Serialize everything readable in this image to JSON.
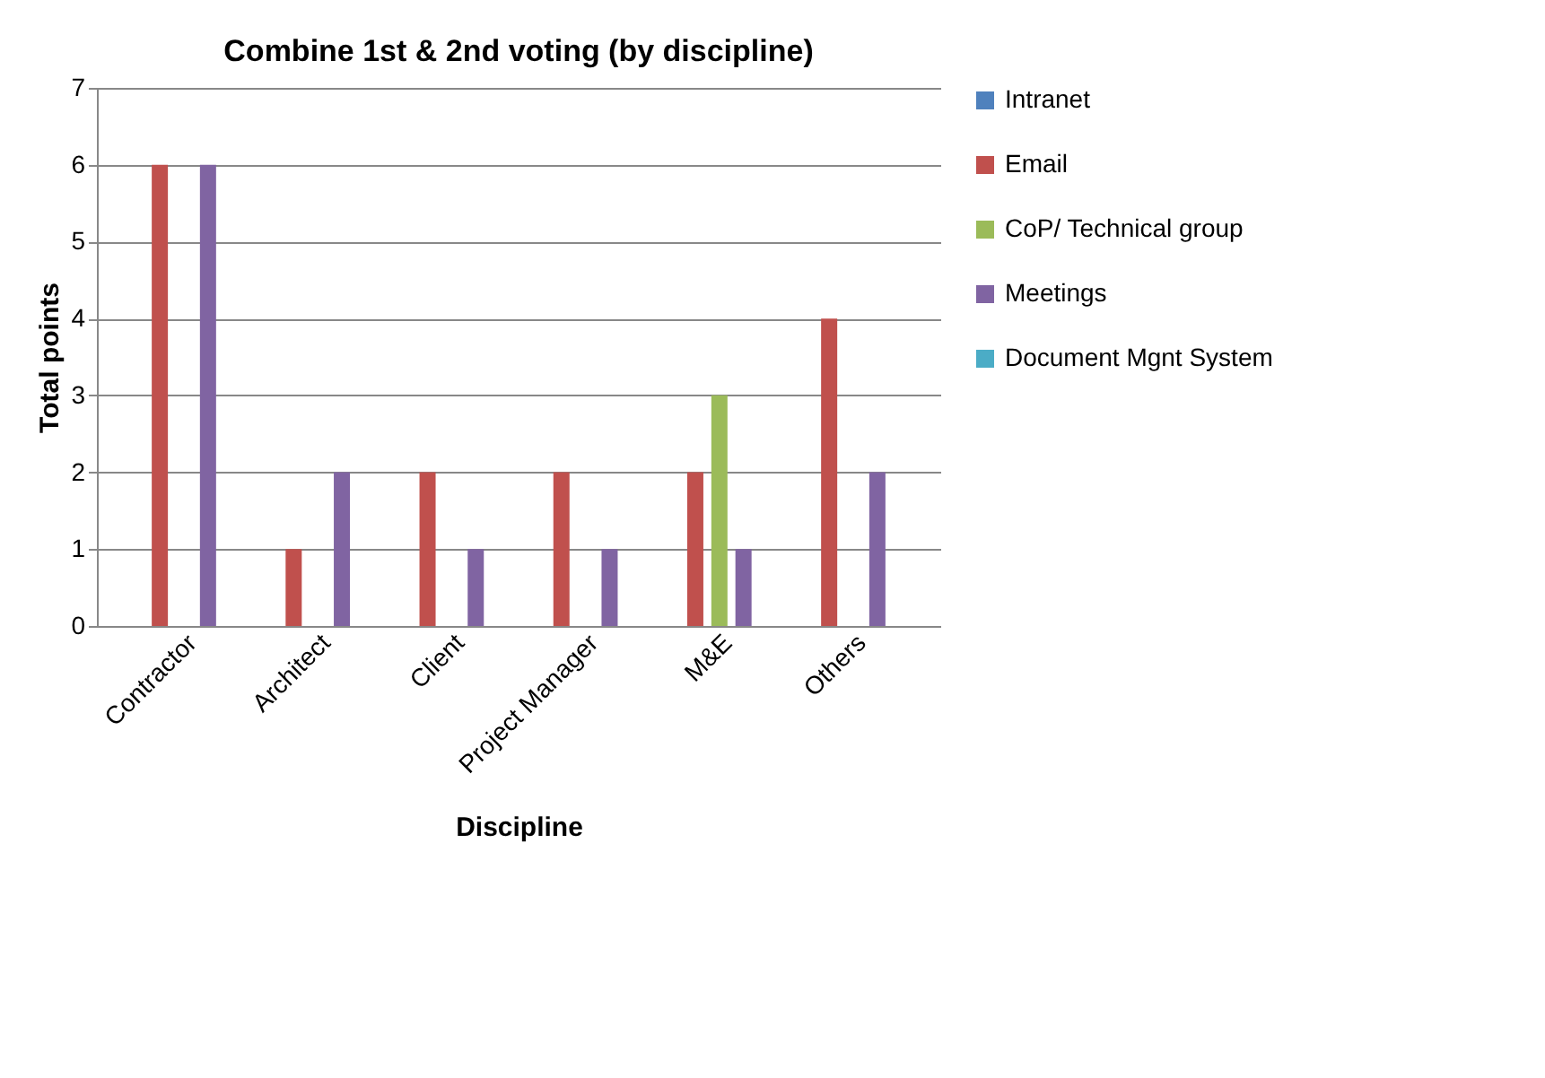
{
  "chart_data": {
    "type": "bar",
    "title": "Combine 1st & 2nd voting (by discipline)",
    "xlabel": "Discipline",
    "ylabel": "Total points",
    "categories": [
      "Contractor",
      "Architect",
      "Client",
      "Project Manager",
      "M&E",
      "Others"
    ],
    "series": [
      {
        "name": "Intranet",
        "color": "#4f81bd",
        "values": [
          0,
          0,
          0,
          0,
          0,
          0
        ]
      },
      {
        "name": "Email",
        "color": "#c0504d",
        "values": [
          6,
          1,
          2,
          2,
          2,
          4
        ]
      },
      {
        "name": "CoP/ Technical group",
        "color": "#9bbb59",
        "values": [
          0,
          0,
          0,
          0,
          3,
          0
        ]
      },
      {
        "name": "Meetings",
        "color": "#8064a2",
        "values": [
          6,
          2,
          1,
          1,
          1,
          2
        ]
      },
      {
        "name": "Document Mgnt System",
        "color": "#4bacc6",
        "values": [
          0,
          0,
          0,
          0,
          0,
          0
        ]
      }
    ],
    "ylim": [
      0,
      7
    ],
    "yticks": [
      0,
      1,
      2,
      3,
      4,
      5,
      6,
      7
    ],
    "grid": "y",
    "legend": "right"
  }
}
